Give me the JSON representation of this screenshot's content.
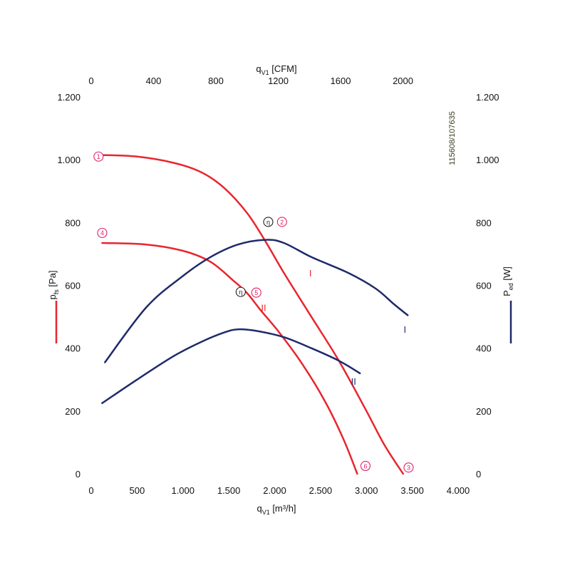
{
  "chart_data": {
    "type": "line",
    "document_id": "115608/107635",
    "axes": {
      "x_bottom": {
        "label_main": "q",
        "label_sub": "V1",
        "label_unit": " [m³/h]",
        "range": [
          0,
          4000
        ],
        "ticks": [
          0,
          500,
          1000,
          1500,
          2000,
          2500,
          3000,
          3500,
          4000
        ],
        "tick_labels": [
          "0",
          "500",
          "1.000",
          "1.500",
          "2.000",
          "2.500",
          "3.000",
          "3.500",
          "4.000"
        ]
      },
      "x_top": {
        "label_main": "q",
        "label_sub": "V1",
        "label_unit": " [CFM]",
        "range": [
          0,
          2354
        ],
        "ticks": [
          0,
          400,
          800,
          1200,
          1600,
          2000
        ],
        "tick_labels": [
          "0",
          "400",
          "800",
          "1200",
          "1600",
          "2000"
        ]
      },
      "y_left": {
        "label_main": "p",
        "label_sub": "fs",
        "label_unit": " [Pa]",
        "range": [
          0,
          1200
        ],
        "ticks": [
          0,
          200,
          400,
          600,
          800,
          1000,
          1200
        ],
        "tick_labels": [
          "0",
          "200",
          "400",
          "600",
          "800",
          "1.000",
          "1.200"
        ]
      },
      "y_right": {
        "label_main": "P",
        "label_sub": "ed",
        "label_unit": " [W]",
        "range": [
          0,
          1200
        ],
        "ticks": [
          0,
          200,
          400,
          600,
          800,
          1000,
          1200
        ],
        "tick_labels": [
          "0",
          "200",
          "400",
          "600",
          "800",
          "1.000",
          "1.200"
        ]
      }
    },
    "colors": {
      "pressure": "#e8262e",
      "power": "#1f2a6b",
      "marker": "#e0206a",
      "efficiency": "#222222"
    },
    "series": [
      {
        "name": "I",
        "kind": "pressure",
        "label_pos": [
          2390,
          640
        ],
        "points": [
          [
            100,
            1015
          ],
          [
            500,
            1010
          ],
          [
            900,
            990
          ],
          [
            1200,
            960
          ],
          [
            1450,
            910
          ],
          [
            1700,
            830
          ],
          [
            1900,
            740
          ],
          [
            2100,
            640
          ],
          [
            2400,
            500
          ],
          [
            2700,
            360
          ],
          [
            3000,
            200
          ],
          [
            3200,
            90
          ],
          [
            3400,
            0
          ]
        ]
      },
      {
        "name": "II",
        "kind": "pressure",
        "label_pos": [
          1880,
          530
        ],
        "points": [
          [
            120,
            735
          ],
          [
            600,
            730
          ],
          [
            1000,
            710
          ],
          [
            1300,
            675
          ],
          [
            1550,
            615
          ],
          [
            1700,
            575
          ],
          [
            1850,
            520
          ],
          [
            2050,
            450
          ],
          [
            2300,
            350
          ],
          [
            2550,
            230
          ],
          [
            2750,
            110
          ],
          [
            2900,
            0
          ]
        ]
      },
      {
        "name": "I",
        "kind": "power",
        "label_pos": [
          3420,
          460
        ],
        "points": [
          [
            150,
            355
          ],
          [
            600,
            530
          ],
          [
            1000,
            630
          ],
          [
            1300,
            690
          ],
          [
            1600,
            730
          ],
          [
            1900,
            745
          ],
          [
            2100,
            735
          ],
          [
            2400,
            690
          ],
          [
            2800,
            640
          ],
          [
            3100,
            590
          ],
          [
            3300,
            540
          ],
          [
            3450,
            505
          ]
        ]
      },
      {
        "name": "II",
        "kind": "power",
        "label_pos": [
          2860,
          295
        ],
        "points": [
          [
            120,
            225
          ],
          [
            500,
            300
          ],
          [
            900,
            375
          ],
          [
            1200,
            420
          ],
          [
            1450,
            450
          ],
          [
            1600,
            460
          ],
          [
            1800,
            455
          ],
          [
            2100,
            435
          ],
          [
            2400,
            400
          ],
          [
            2700,
            360
          ],
          [
            2930,
            320
          ]
        ]
      }
    ],
    "operating_points": [
      {
        "label": "1",
        "x": 80,
        "y": 1010
      },
      {
        "label": "2",
        "x": 2080,
        "y": 802
      },
      {
        "label": "3",
        "x": 3460,
        "y": 20
      },
      {
        "label": "4",
        "x": 120,
        "y": 767
      },
      {
        "label": "5",
        "x": 1800,
        "y": 577
      },
      {
        "label": "6",
        "x": 2990,
        "y": 25
      }
    ],
    "efficiency_markers": [
      {
        "label": "η",
        "x": 1930,
        "y": 802
      },
      {
        "label": "η",
        "x": 1630,
        "y": 579
      }
    ]
  }
}
